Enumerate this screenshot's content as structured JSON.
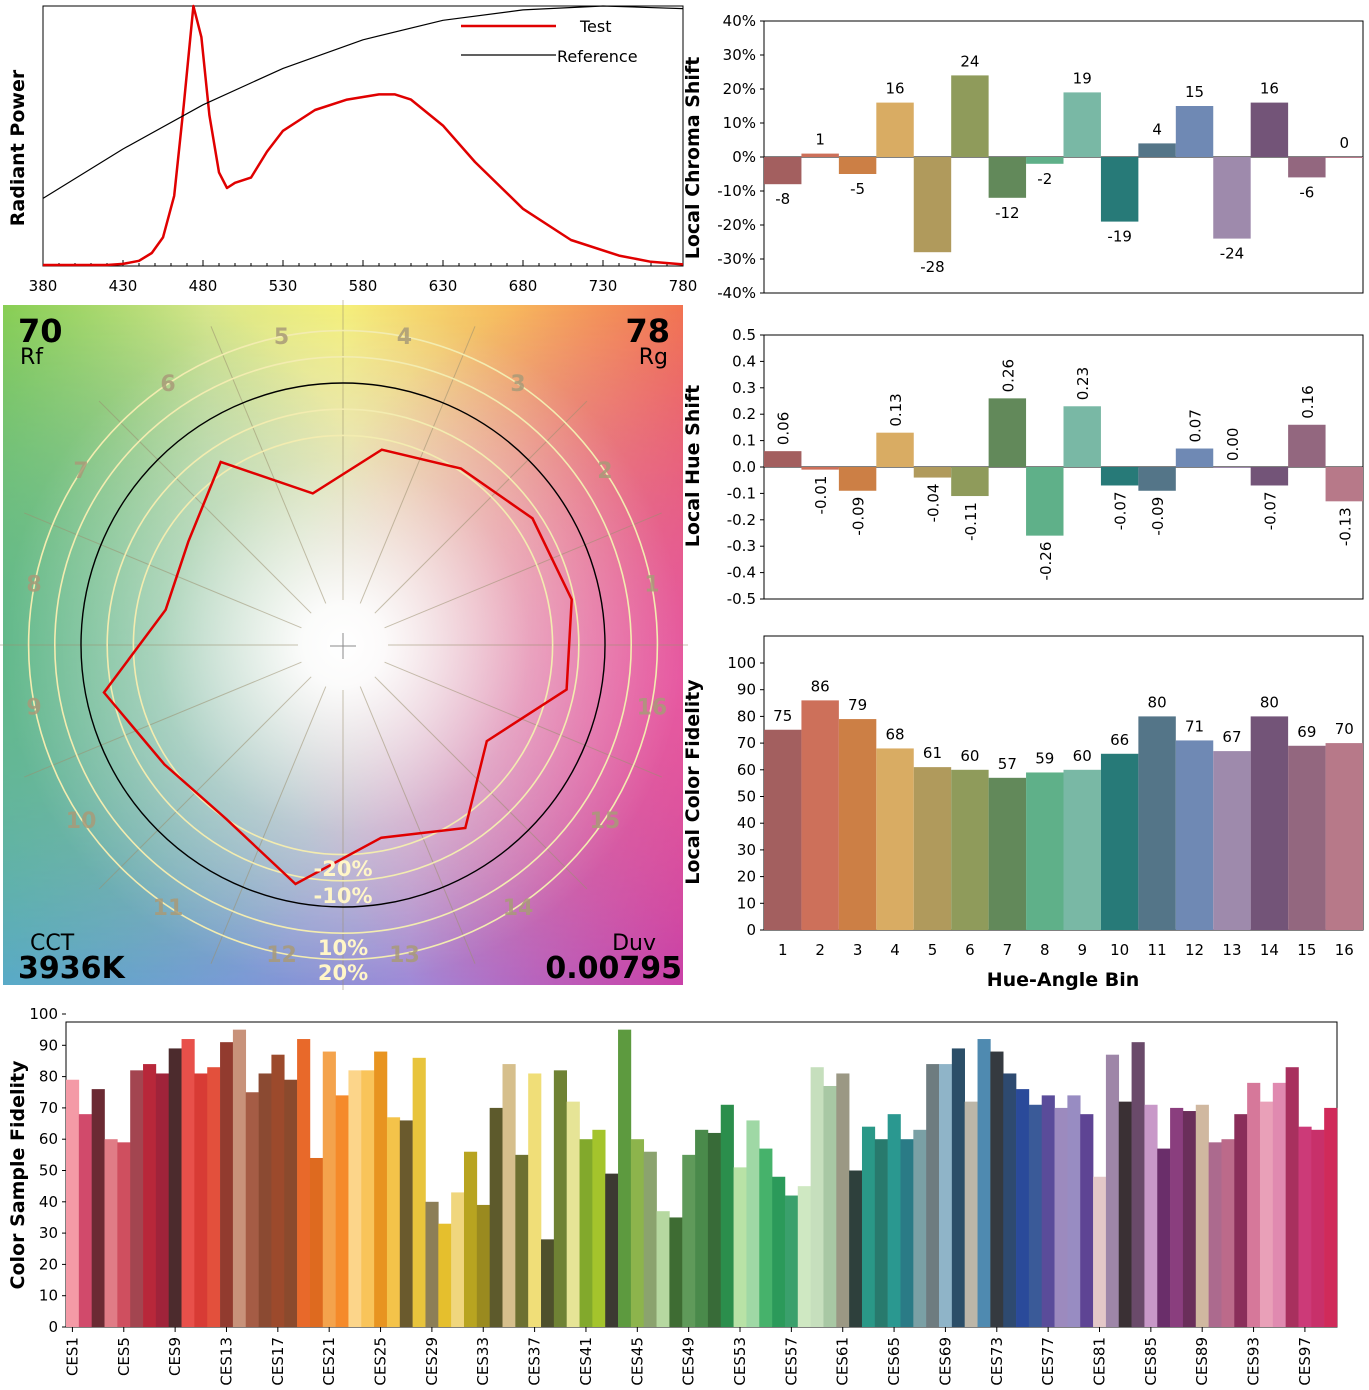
{
  "colors": {
    "test_line": "#e00000",
    "reference_line": "#000000",
    "bin_colors": [
      "#a35f5f",
      "#cd705a",
      "#cc7f45",
      "#d9ac63",
      "#b09a5c",
      "#8f9b5b",
      "#62895a",
      "#5fb089",
      "#79b8a5",
      "#277a78",
      "#547588",
      "#6f89b4",
      "#9e8aac",
      "#735478",
      "#93677f",
      "#b77989"
    ]
  },
  "spectrum": {
    "chart_data": {
      "type": "line",
      "ylabel": "Radiant Power",
      "xlim": [
        380,
        780
      ],
      "x_ticks": [
        "380",
        "430",
        "480",
        "530",
        "580",
        "630",
        "680",
        "730",
        "780"
      ],
      "series": [
        {
          "name": "Test",
          "x": [
            380,
            420,
            430,
            440,
            448,
            455,
            462,
            468,
            474,
            479,
            484,
            490,
            495,
            500,
            505,
            510,
            520,
            530,
            550,
            570,
            590,
            600,
            610,
            630,
            650,
            680,
            710,
            740,
            760,
            780
          ],
          "y": [
            0.004,
            0.004,
            0.008,
            0.02,
            0.05,
            0.11,
            0.27,
            0.62,
            1.0,
            0.88,
            0.58,
            0.36,
            0.3,
            0.32,
            0.33,
            0.34,
            0.44,
            0.52,
            0.6,
            0.64,
            0.66,
            0.66,
            0.64,
            0.54,
            0.4,
            0.22,
            0.1,
            0.04,
            0.016,
            0.006
          ]
        },
        {
          "name": "Reference",
          "x": [
            380,
            430,
            480,
            530,
            580,
            630,
            680,
            730,
            780
          ],
          "y": [
            0.26,
            0.45,
            0.62,
            0.76,
            0.87,
            0.945,
            0.985,
            1.0,
            0.99
          ]
        }
      ],
      "legend": [
        "Test",
        "Reference"
      ]
    }
  },
  "chroma": {
    "chart_data": {
      "type": "bar",
      "ylabel": "Local Chroma Shift",
      "y_ticks": [
        "40%",
        "30%",
        "20%",
        "10%",
        "0%",
        "-10%",
        "-20%",
        "-30%",
        "-40%"
      ],
      "ylim": [
        -40,
        40
      ],
      "categories": [
        "1",
        "2",
        "3",
        "4",
        "5",
        "6",
        "7",
        "8",
        "9",
        "10",
        "11",
        "12",
        "13",
        "14",
        "15",
        "16"
      ],
      "values": [
        -8,
        1,
        -5,
        16,
        -28,
        24,
        -12,
        -2,
        19,
        -19,
        4,
        15,
        -24,
        16,
        -6,
        0
      ],
      "labels": [
        "-8",
        "1",
        "-5",
        "16",
        "-28",
        "24",
        "-12",
        "-2",
        "19",
        "-19",
        "4",
        "15",
        "-24",
        "16",
        "-6",
        "0"
      ]
    }
  },
  "hue": {
    "chart_data": {
      "type": "bar",
      "ylabel": "Local Hue Shift",
      "y_ticks": [
        "0.5",
        "0.4",
        "0.3",
        "0.2",
        "0.1",
        "0.0",
        "-0.1",
        "-0.2",
        "-0.3",
        "-0.4",
        "-0.5"
      ],
      "ylim": [
        -0.5,
        0.5
      ],
      "categories": [
        "1",
        "2",
        "3",
        "4",
        "5",
        "6",
        "7",
        "8",
        "9",
        "10",
        "11",
        "12",
        "13",
        "14",
        "15",
        "16"
      ],
      "values": [
        0.06,
        -0.01,
        -0.09,
        0.13,
        -0.04,
        -0.11,
        0.26,
        -0.26,
        0.23,
        -0.07,
        -0.09,
        0.07,
        0.0,
        -0.07,
        0.16,
        -0.13
      ],
      "labels": [
        "0.06",
        "-0.01",
        "-0.09",
        "0.13",
        "-0.04",
        "-0.11",
        "0.26",
        "-0.26",
        "0.23",
        "-0.07",
        "-0.09",
        "0.07",
        "0.00",
        "-0.07",
        "0.16",
        "-0.13"
      ]
    }
  },
  "fidelity": {
    "chart_data": {
      "type": "bar",
      "ylabel": "Local Color Fidelity",
      "xlabel": "Hue-Angle Bin",
      "y_ticks": [
        "100",
        "90",
        "80",
        "70",
        "60",
        "50",
        "40",
        "30",
        "20",
        "10",
        "0"
      ],
      "ylim": [
        0,
        100
      ],
      "categories": [
        "1",
        "2",
        "3",
        "4",
        "5",
        "6",
        "7",
        "8",
        "9",
        "10",
        "11",
        "12",
        "13",
        "14",
        "15",
        "16"
      ],
      "values": [
        75,
        86,
        79,
        68,
        61,
        60,
        57,
        59,
        60,
        66,
        80,
        71,
        67,
        80,
        69,
        70
      ],
      "labels": [
        "75",
        "86",
        "79",
        "68",
        "61",
        "60",
        "57",
        "59",
        "60",
        "66",
        "80",
        "71",
        "67",
        "80",
        "69",
        "70"
      ]
    }
  },
  "vector": {
    "rf_value": "70",
    "rf_label": "Rf",
    "rg_value": "78",
    "rg_label": "Rg",
    "cct_label": "CCT",
    "cct_value": "3936K",
    "duv_label": "Duv",
    "duv_value": "0.00795",
    "ring_labels": [
      "-20%",
      "-10%",
      "10%",
      "20%"
    ],
    "bin_numbers": [
      "1",
      "2",
      "3",
      "4",
      "5",
      "6",
      "7",
      "8",
      "9",
      "10",
      "11",
      "12",
      "13",
      "14",
      "15",
      "16"
    ],
    "chart_data": {
      "type": "radar",
      "categories": [
        "1",
        "2",
        "3",
        "4",
        "5",
        "6",
        "7",
        "8",
        "9",
        "10",
        "11",
        "12",
        "13",
        "14",
        "15",
        "16"
      ],
      "test_relative_radius": [
        0.89,
        0.87,
        0.81,
        0.76,
        0.59,
        0.84,
        0.71,
        0.69,
        0.93,
        0.82,
        0.8,
        0.93,
        0.75,
        0.84,
        0.66,
        0.87
      ],
      "reference_relative_radius": 1.0
    }
  },
  "samples": {
    "chart_data": {
      "type": "bar",
      "ylabel": "Color Sample Fidelity",
      "y_ticks": [
        "100",
        "90",
        "80",
        "70",
        "60",
        "50",
        "40",
        "30",
        "20",
        "10",
        "0"
      ],
      "ylim": [
        0,
        100
      ],
      "tick_labels": [
        "CES1",
        "CES5",
        "CES9",
        "CES13",
        "CES17",
        "CES21",
        "CES25",
        "CES29",
        "CES33",
        "CES37",
        "CES41",
        "CES45",
        "CES49",
        "CES53",
        "CES57",
        "CES61",
        "CES65",
        "CES69",
        "CES73",
        "CES77",
        "CES81",
        "CES85",
        "CES89",
        "CES93",
        "CES97"
      ],
      "values": [
        79,
        68,
        76,
        60,
        59,
        82,
        84,
        81,
        89,
        92,
        81,
        83,
        91,
        95,
        75,
        81,
        87,
        79,
        92,
        54,
        88,
        74,
        82,
        82,
        88,
        67,
        66,
        86,
        40,
        33,
        43,
        56,
        39,
        70,
        84,
        55,
        81,
        28,
        82,
        72,
        60,
        63,
        49,
        95,
        60,
        56,
        37,
        35,
        55,
        63,
        62,
        71,
        51,
        66,
        57,
        48,
        42,
        45,
        83,
        77,
        81,
        50,
        64,
        60,
        68,
        60,
        63,
        84,
        84,
        89,
        72,
        92,
        88,
        81,
        76,
        71,
        74,
        70,
        74,
        68,
        48,
        87,
        72,
        91,
        71,
        57,
        70,
        69,
        71,
        59,
        60,
        68,
        78,
        72,
        78,
        83,
        64,
        63,
        70
      ],
      "colors": [
        "#f49aa6",
        "#d14a6b",
        "#6b2a33",
        "#e07c86",
        "#cf4f5f",
        "#a34550",
        "#b8273a",
        "#a0233a",
        "#4c2b2d",
        "#e8504a",
        "#d83b35",
        "#e3503c",
        "#923b2f",
        "#c8927a",
        "#a55c45",
        "#8b4a32",
        "#9c4a2c",
        "#8b4a2d",
        "#e8692a",
        "#de6a1f",
        "#f4a34c",
        "#f58a2a",
        "#fcd58a",
        "#f9c45a",
        "#e89420",
        "#f4c34a",
        "#6a5a2d",
        "#e8c43c",
        "#8c7e57",
        "#e5bf2d",
        "#f0d67d",
        "#b8a420",
        "#9a8a1f",
        "#5d5a2c",
        "#d6bf8c",
        "#6d7031",
        "#f0de78",
        "#4e502c",
        "#6f8234",
        "#e6e496",
        "#82a92c",
        "#a4c42c",
        "#3c3a32",
        "#5d9a3f",
        "#8db44c",
        "#8ba36e",
        "#b6d8a0",
        "#3e6c33",
        "#5f9a5a",
        "#4a8a4b",
        "#386b38",
        "#2b8e4c",
        "#b8e2a6",
        "#9fd8a5",
        "#46b26b",
        "#2b9a5a",
        "#3aa06c",
        "#cfe8c2",
        "#c6dfbd",
        "#a8c8a4",
        "#9b9884",
        "#2e403c",
        "#2a9887",
        "#287a6d",
        "#2a9890",
        "#2a7b86",
        "#7aa0a5",
        "#6e7c80",
        "#8fb4c8",
        "#2b4e68",
        "#bcb6a8",
        "#4f8ab0",
        "#353a40",
        "#2e4a70",
        "#2a4a9a",
        "#3a5a98",
        "#5a4c9a",
        "#9c8abe",
        "#988cc2",
        "#5e4494",
        "#e4c8c8",
        "#9e86a8",
        "#3a3034",
        "#6a4a6a",
        "#c898c8",
        "#6a2e6a",
        "#8a3e7e",
        "#6a2e5a",
        "#d0b8a0",
        "#ac6a8e",
        "#bc6a8a",
        "#8a2e5a",
        "#d6789a",
        "#e9a0b8",
        "#e08ab0",
        "#a8305e",
        "#cc3a78",
        "#c8306a",
        "#d02a5a"
      ]
    }
  }
}
